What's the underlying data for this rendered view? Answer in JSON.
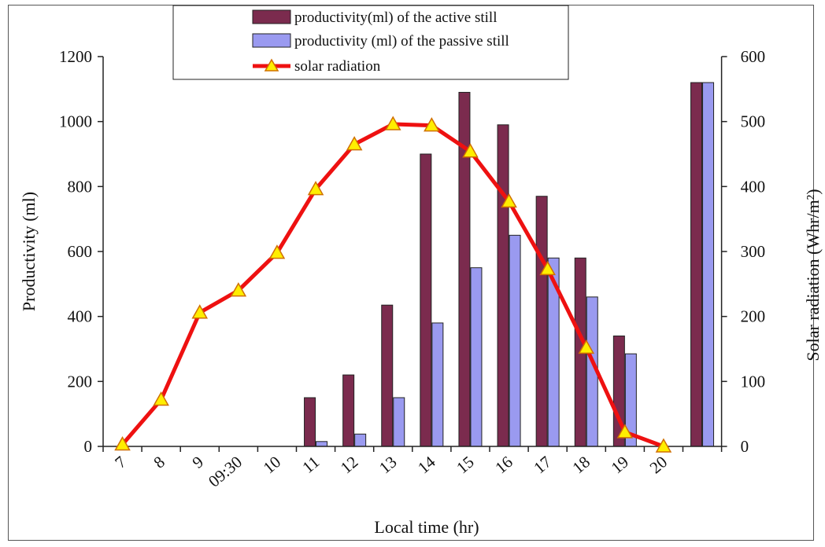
{
  "chart_data": {
    "type": "bar",
    "categories": [
      "7",
      "8",
      "9",
      "09:30",
      "10",
      "11",
      "12",
      "13",
      "14",
      "15",
      "16",
      "17",
      "18",
      "19",
      "20",
      ""
    ],
    "series": [
      {
        "name": "productivity(ml) of the active still",
        "axis": "left",
        "kind": "bar",
        "color": "#7b2b4e",
        "values": [
          0,
          0,
          0,
          0,
          0,
          150,
          220,
          435,
          900,
          1090,
          990,
          770,
          580,
          340,
          null,
          1120
        ]
      },
      {
        "name": "productivity (ml) of the passive still",
        "axis": "left",
        "kind": "bar",
        "color": "#9a9af0",
        "values": [
          0,
          0,
          0,
          0,
          0,
          15,
          38,
          150,
          380,
          550,
          650,
          580,
          460,
          285,
          null,
          1120
        ]
      },
      {
        "name": "solar radiation",
        "axis": "right",
        "kind": "line",
        "color": "#ee1111",
        "marker_color": "#ffee00",
        "x": [
          0,
          1,
          2,
          3,
          4,
          5,
          6,
          7,
          8,
          9,
          10,
          11,
          12,
          13,
          14
        ],
        "values": [
          3,
          72,
          206,
          240,
          298,
          396,
          465,
          496,
          494,
          454,
          377,
          273,
          152,
          22,
          0
        ]
      }
    ],
    "xlabel": "Local time (hr)",
    "ylabel": "Productivity (ml)",
    "y2label": "Solar radiation (Whr/m²)",
    "ylim": [
      0,
      1200
    ],
    "y2lim": [
      0,
      600
    ],
    "yticks": [
      "0",
      "200",
      "400",
      "600",
      "800",
      "1000",
      "1200"
    ],
    "y2ticks": [
      "0",
      "100",
      "200",
      "300",
      "400",
      "500",
      "600"
    ],
    "grid": false,
    "legend_position": "top-center"
  }
}
